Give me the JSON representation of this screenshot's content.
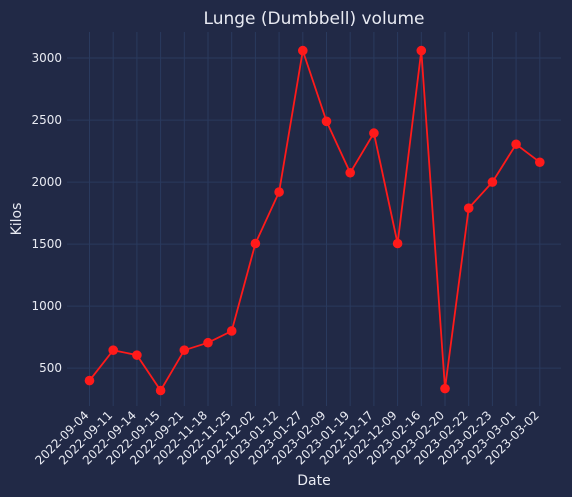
{
  "chart_data": {
    "type": "line",
    "title": "Lunge (Dumbbell) volume",
    "xlabel": "Date",
    "ylabel": "Kilos",
    "categories": [
      "2022-09-04",
      "2022-09-11",
      "2022-09-14",
      "2022-09-15",
      "2022-09-21",
      "2022-11-18",
      "2022-11-25",
      "2022-12-02",
      "2023-01-12",
      "2023-01-27",
      "2023-02-09",
      "2023-01-19",
      "2022-12-17",
      "2022-12-09",
      "2023-02-16",
      "2023-02-20",
      "2023-02-22",
      "2023-02-23",
      "2023-03-01",
      "2023-03-02"
    ],
    "series": [
      {
        "values": [
          400,
          645,
          605,
          320,
          645,
          705,
          800,
          1505,
          1920,
          3060,
          2490,
          2075,
          2395,
          1505,
          3060,
          335,
          1790,
          2000,
          2305,
          2160
        ]
      }
    ],
    "ylim": [
      195,
      3210
    ],
    "yticks": [
      500,
      1000,
      1500,
      2000,
      2500,
      3000
    ],
    "grid": true,
    "colors": {
      "background": "#212946",
      "grid": "#2a3a5e",
      "line": "#ff1a1a",
      "text": "#e8eaf2"
    }
  }
}
